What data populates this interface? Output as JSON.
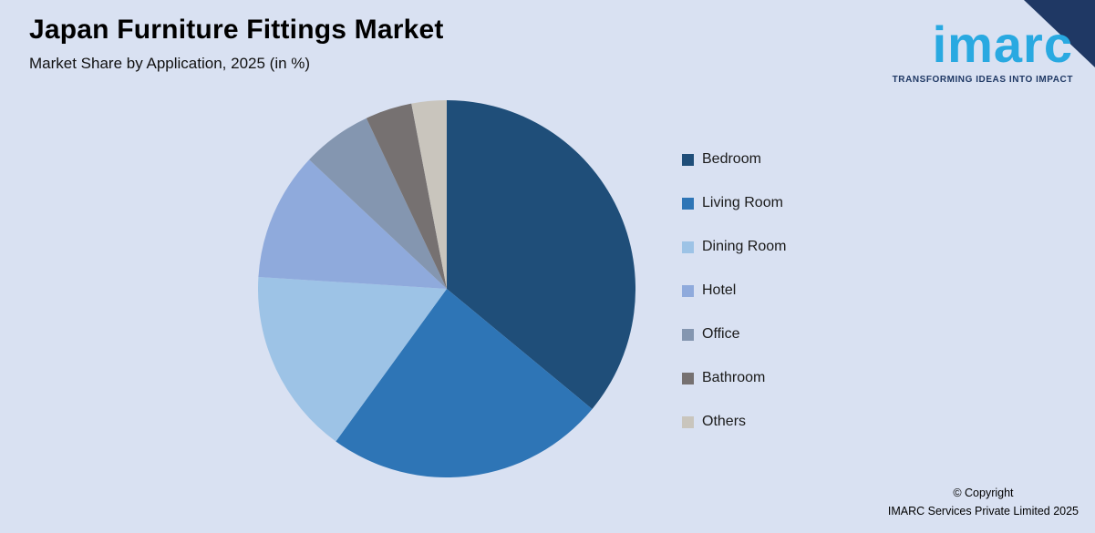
{
  "header": {
    "title": "Japan Furniture Fittings Market",
    "subtitle": "Market Share by Application, 2025 (in %)"
  },
  "branding": {
    "logo_text": "imarc",
    "tagline": "TRANSFORMING IDEAS INTO IMPACT"
  },
  "footer": {
    "copyright_line1": "© Copyright",
    "copyright_line2": "IMARC Services Private Limited 2025"
  },
  "colors": {
    "background": "#d9e1f2",
    "accent_navy": "#1f3864",
    "logo_blue": "#29a9e1"
  },
  "chart_data": {
    "type": "pie",
    "title": "Japan Furniture Fittings Market",
    "subtitle": "Market Share by Application, 2025 (in %)",
    "unit": "%",
    "legend_position": "right",
    "start_angle_deg": 0,
    "direction": "clockwise",
    "categories": [
      "Bedroom",
      "Living Room",
      "Dining Room",
      "Hotel",
      "Office",
      "Bathroom",
      "Others"
    ],
    "values": [
      36,
      24,
      16,
      11,
      6,
      4,
      3
    ],
    "colors": [
      "#1f4e79",
      "#2e75b6",
      "#9dc3e6",
      "#8faadc",
      "#8496b0",
      "#767171",
      "#c9c5bd"
    ]
  }
}
